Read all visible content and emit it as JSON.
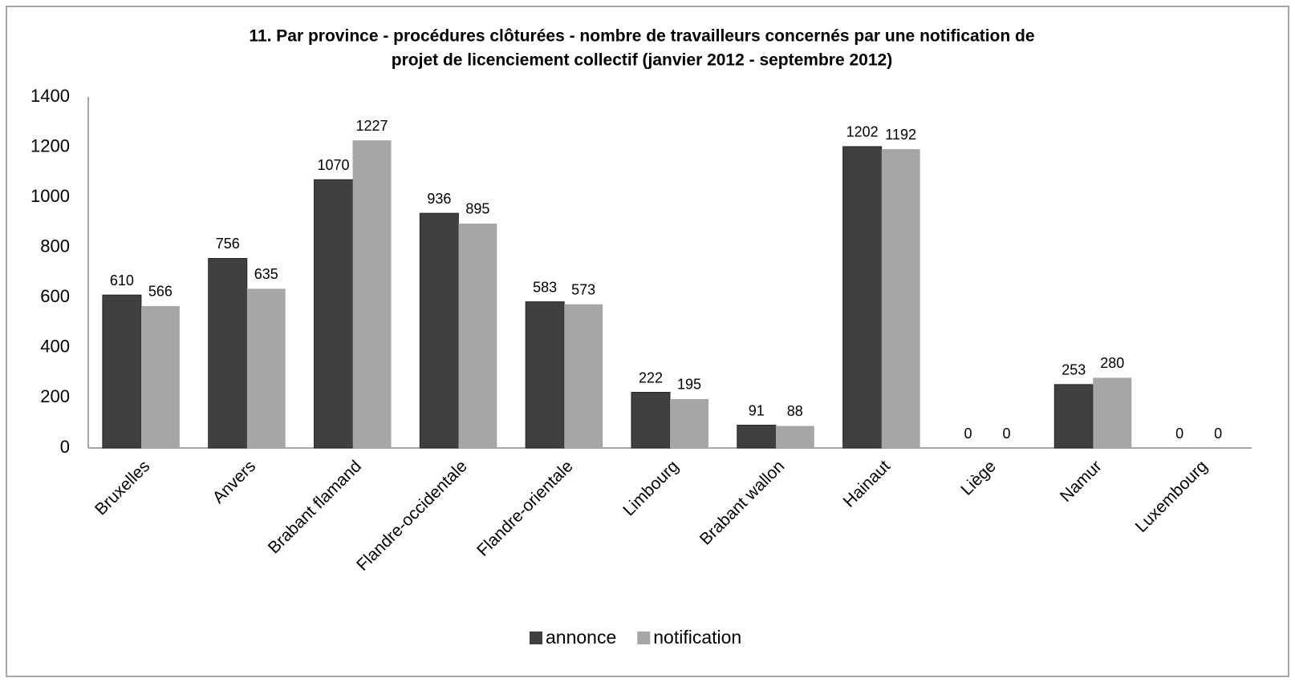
{
  "chart_data": {
    "type": "bar",
    "title": [
      "11. Par province - procédures clôturées -  nombre de travailleurs concernés par une notification de",
      "projet de licenciement collectif (janvier 2012 - septembre 2012)"
    ],
    "categories": [
      "Bruxelles",
      "Anvers",
      "Brabant flamand",
      "Flandre-occidentale",
      "Flandre-orientale",
      "Limbourg",
      "Brabant wallon",
      "Hainaut",
      "Liège",
      "Namur",
      "Luxembourg"
    ],
    "series": [
      {
        "name": "annonce",
        "color": "#404040",
        "values": [
          610,
          756,
          1070,
          936,
          583,
          222,
          91,
          1202,
          0,
          253,
          0
        ]
      },
      {
        "name": "notification",
        "color": "#a6a6a6",
        "values": [
          566,
          635,
          1227,
          895,
          573,
          195,
          88,
          1192,
          0,
          280,
          0
        ]
      }
    ],
    "ylim": [
      0,
      1400
    ],
    "yticks": [
      0,
      200,
      400,
      600,
      800,
      1000,
      1200,
      1400
    ],
    "legend": "bottom",
    "grid": false
  }
}
